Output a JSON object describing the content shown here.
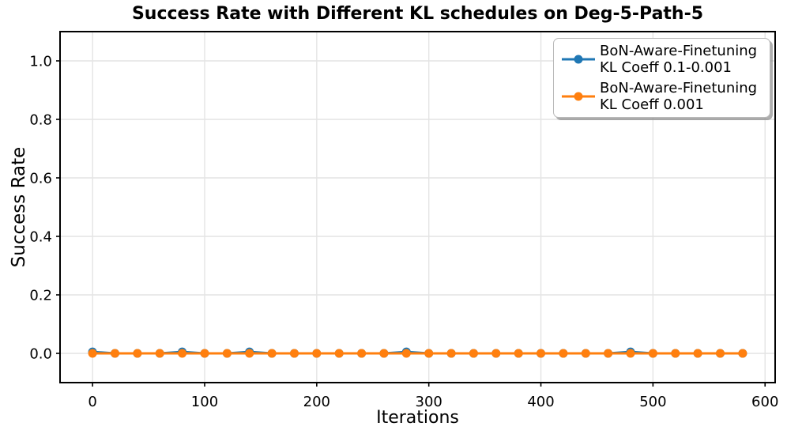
{
  "chart_data": {
    "type": "line",
    "title": "Success Rate with Different KL schedules on Deg-5-Path-5",
    "xlabel": "Iterations",
    "ylabel": "Success Rate",
    "x": [
      0,
      20,
      40,
      60,
      80,
      100,
      120,
      140,
      160,
      180,
      200,
      220,
      240,
      260,
      280,
      300,
      320,
      340,
      360,
      380,
      400,
      420,
      440,
      460,
      480,
      500,
      520,
      540,
      560,
      580
    ],
    "series": [
      {
        "name": "BoN-Aware-Finetuning KL Coeff 0.1-0.001",
        "color": "#1f77b4",
        "values": [
          0.005,
          0,
          0,
          0,
          0.005,
          0,
          0,
          0.005,
          0,
          0,
          0,
          0,
          0,
          0,
          0.005,
          0,
          0,
          0,
          0,
          0,
          0,
          0,
          0,
          0,
          0.005,
          0,
          0,
          0,
          0,
          0
        ]
      },
      {
        "name": "BoN-Aware-Finetuning KL Coeff 0.001",
        "color": "#ff7f0e",
        "values": [
          0,
          0,
          0,
          0,
          0,
          0,
          0,
          0,
          0,
          0,
          0,
          0,
          0,
          0,
          0,
          0,
          0,
          0,
          0,
          0,
          0,
          0,
          0,
          0,
          0,
          0,
          0,
          0,
          0,
          0
        ]
      }
    ],
    "xlim": [
      -29,
      609
    ],
    "ylim": [
      -0.1,
      1.1
    ],
    "xticks": [
      0,
      100,
      200,
      300,
      400,
      500,
      600
    ],
    "yticks": [
      0.0,
      0.2,
      0.4,
      0.6,
      0.8,
      1.0
    ],
    "grid": true,
    "legend_position": "upper right",
    "frame_color": "#000000",
    "grid_color": "#e4e4e4"
  }
}
